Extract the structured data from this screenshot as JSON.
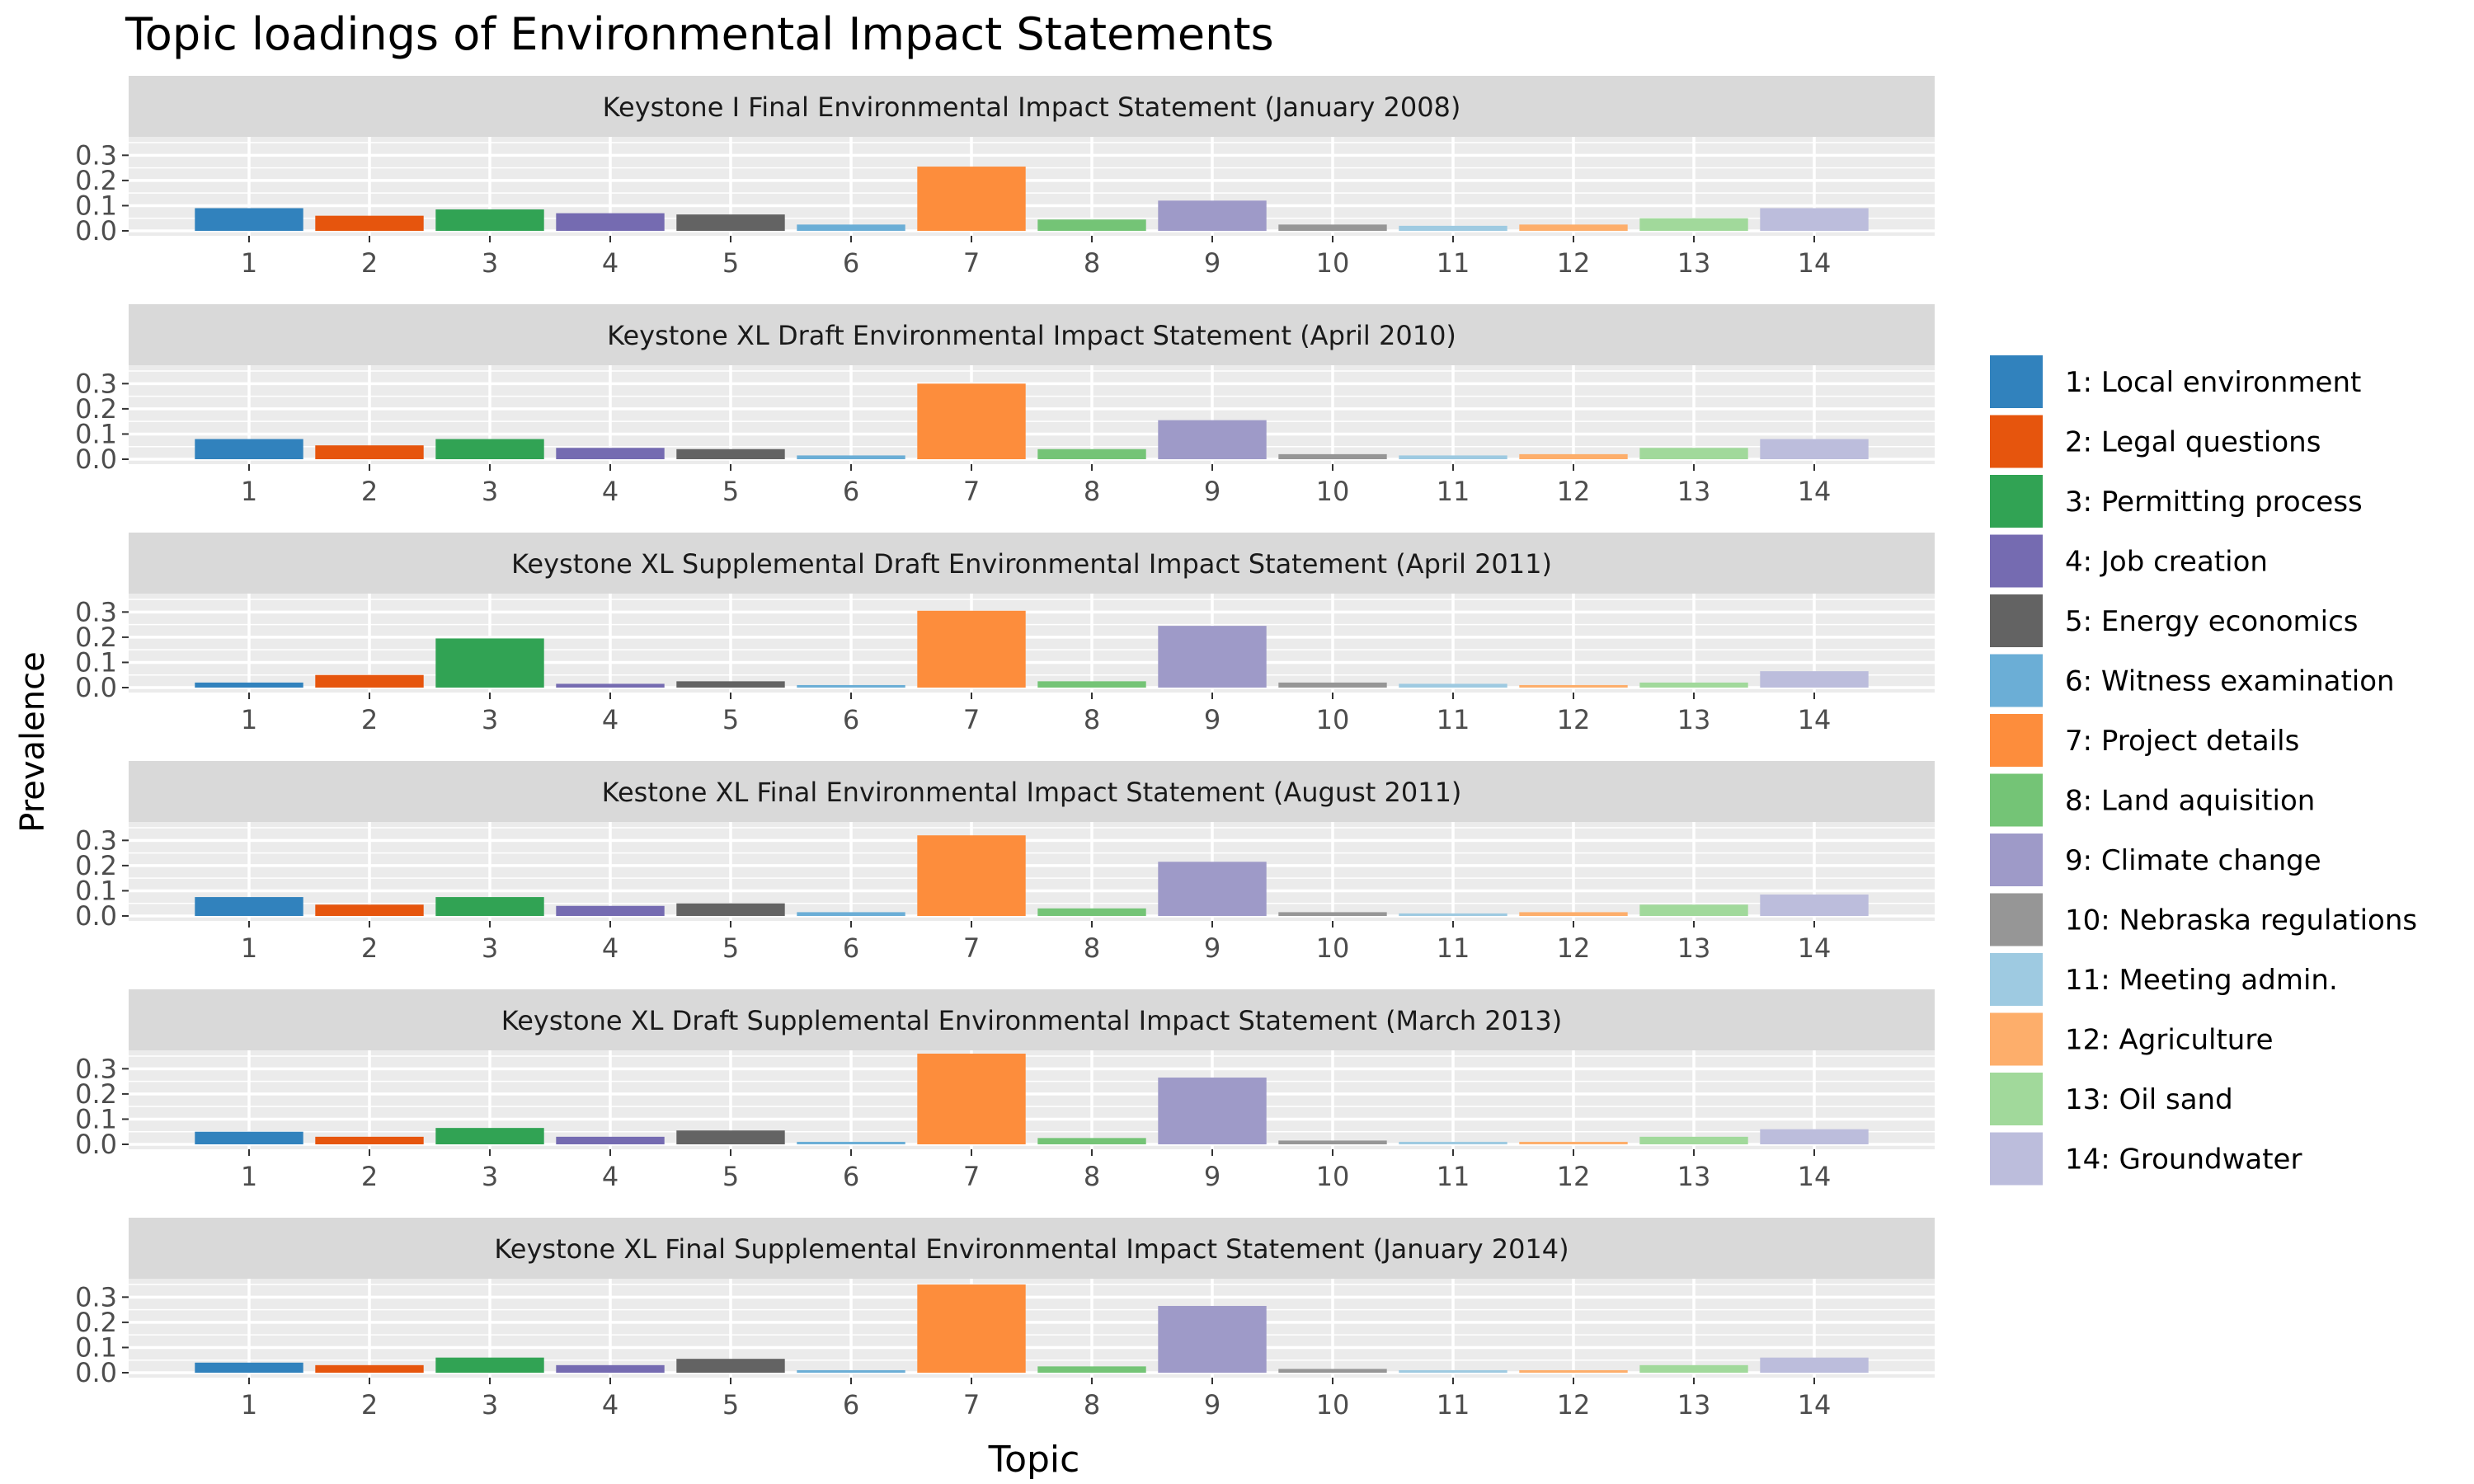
{
  "chart_data": {
    "type": "bar",
    "title": "Topic loadings of Environmental Impact Statements",
    "xlabel": "Topic",
    "ylabel": "Prevalence",
    "ylim": [
      0,
      0.36
    ],
    "y_ticks": [
      "0.0",
      "0.1",
      "0.2",
      "0.3"
    ],
    "categories": [
      "1",
      "2",
      "3",
      "4",
      "5",
      "6",
      "7",
      "8",
      "9",
      "10",
      "11",
      "12",
      "13",
      "14"
    ],
    "grid": true,
    "legend_position": "right",
    "legend": [
      {
        "label": "1: Local environment",
        "color": "#3182bd"
      },
      {
        "label": "2: Legal questions",
        "color": "#e6550d"
      },
      {
        "label": "3: Permitting process",
        "color": "#31a354"
      },
      {
        "label": "4: Job creation",
        "color": "#756bb1"
      },
      {
        "label": "5: Energy economics",
        "color": "#636363"
      },
      {
        "label": "6: Witness examination",
        "color": "#6baed6"
      },
      {
        "label": "7: Project details",
        "color": "#fd8d3c"
      },
      {
        "label": "8: Land aquisition",
        "color": "#74c476"
      },
      {
        "label": "9: Climate change",
        "color": "#9e9ac8"
      },
      {
        "label": "10: Nebraska regulations",
        "color": "#969696"
      },
      {
        "label": "11: Meeting admin.",
        "color": "#9ecae1"
      },
      {
        "label": "12: Agriculture",
        "color": "#fdae6b"
      },
      {
        "label": "13: Oil sand",
        "color": "#a1d99b"
      },
      {
        "label": "14: Groundwater",
        "color": "#bcbddc"
      }
    ],
    "panels": [
      {
        "title": "Keystone I Final Environmental Impact Statement (January 2008)",
        "values": [
          0.09,
          0.06,
          0.085,
          0.07,
          0.065,
          0.025,
          0.255,
          0.045,
          0.12,
          0.025,
          0.02,
          0.025,
          0.05,
          0.09
        ]
      },
      {
        "title": "Keystone XL Draft Environmental Impact Statement (April 2010)",
        "values": [
          0.08,
          0.055,
          0.08,
          0.045,
          0.04,
          0.015,
          0.3,
          0.04,
          0.155,
          0.02,
          0.015,
          0.02,
          0.045,
          0.08
        ]
      },
      {
        "title": "Keystone XL Supplemental Draft Environmental Impact Statement (April 2011)",
        "values": [
          0.02,
          0.05,
          0.195,
          0.015,
          0.025,
          0.01,
          0.305,
          0.025,
          0.245,
          0.02,
          0.015,
          0.01,
          0.02,
          0.065
        ]
      },
      {
        "title": "Kestone XL Final Environmental Impact Statement (August 2011)",
        "values": [
          0.075,
          0.045,
          0.075,
          0.04,
          0.05,
          0.015,
          0.32,
          0.03,
          0.215,
          0.015,
          0.01,
          0.015,
          0.045,
          0.085
        ]
      },
      {
        "title": "Keystone XL Draft Supplemental Environmental Impact Statement (March 2013)",
        "values": [
          0.05,
          0.03,
          0.065,
          0.03,
          0.055,
          0.01,
          0.36,
          0.025,
          0.265,
          0.015,
          0.01,
          0.01,
          0.03,
          0.06
        ]
      },
      {
        "title": "Keystone XL Final Supplemental Environmental Impact Statement (January 2014)",
        "values": [
          0.04,
          0.03,
          0.06,
          0.03,
          0.055,
          0.01,
          0.35,
          0.025,
          0.265,
          0.015,
          0.01,
          0.01,
          0.03,
          0.06
        ]
      }
    ]
  }
}
